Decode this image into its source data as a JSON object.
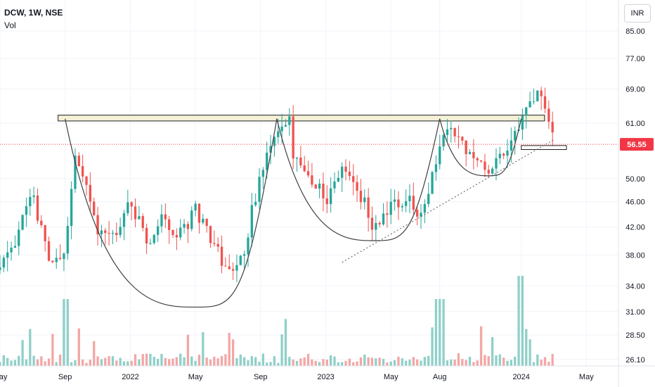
{
  "header": {
    "symbol_line": "DCW, 1W, NSE",
    "volume_label": "Vol",
    "currency": "INR"
  },
  "colors": {
    "up": "#26a69a",
    "down": "#ef5350",
    "volume_up": "#8fd0c8",
    "volume_down": "#f3a7a5",
    "pattern_line": "#3f3f3f",
    "resistance_fill": "#f4f1d7",
    "last_price": "#f23645"
  },
  "chart_data": {
    "type": "candlestick",
    "interval": "1W",
    "exchange": "NSE",
    "y_scale": "log",
    "ylim": [
      25.5,
      95
    ],
    "y_ticks": [
      "85.00",
      "77.00",
      "69.00",
      "61.00",
      "50.00",
      "46.00",
      "42.00",
      "38.00",
      "34.00",
      "31.00",
      "28.50",
      "26.10"
    ],
    "y_tick_values": [
      85,
      77,
      69,
      61,
      50,
      46,
      42,
      38,
      34,
      31,
      28.5,
      26.1
    ],
    "last_price": {
      "label": "56.55",
      "value": 56.55
    },
    "x_ticks": [
      "May",
      "Sep",
      "2022",
      "May",
      "Sep",
      "2023",
      "May",
      "Aug",
      "2024",
      "May"
    ],
    "x_tick_dates": [
      "2021-05",
      "2021-09",
      "2022-01",
      "2022-05",
      "2022-09",
      "2023-01",
      "2023-05",
      "2023-08",
      "2024-01",
      "2024-05"
    ],
    "x_range": [
      "2021-05",
      "2024-05"
    ],
    "pivots": [
      [
        "2021-05",
        36.0
      ],
      [
        "2021-06",
        40.5
      ],
      [
        "2021-07",
        47.0
      ],
      [
        "2021-08",
        36.5
      ],
      [
        "2021-09",
        38.0
      ],
      [
        "2021-09-20",
        54.0
      ],
      [
        "2021-10",
        50.0
      ],
      [
        "2021-11",
        42.0
      ],
      [
        "2021-12",
        41.0
      ],
      [
        "2022-01",
        46.5
      ],
      [
        "2022-02",
        39.0
      ],
      [
        "2022-03",
        44.0
      ],
      [
        "2022-04",
        40.5
      ],
      [
        "2022-05",
        45.0
      ],
      [
        "2022-06",
        40.5
      ],
      [
        "2022-07",
        35.5
      ],
      [
        "2022-08",
        38.5
      ],
      [
        "2022-09",
        51.0
      ],
      [
        "2022-10",
        58.0
      ],
      [
        "2022-10-25",
        61.5
      ],
      [
        "2022-11",
        53.0
      ],
      [
        "2022-12",
        50.5
      ],
      [
        "2023-01",
        46.0
      ],
      [
        "2023-02",
        52.5
      ],
      [
        "2023-03",
        48.0
      ],
      [
        "2023-04",
        41.5
      ],
      [
        "2023-05",
        45.5
      ],
      [
        "2023-06",
        46.0
      ],
      [
        "2023-07",
        44.0
      ],
      [
        "2023-08",
        55.5
      ],
      [
        "2023-08-25",
        60.0
      ],
      [
        "2023-09",
        57.0
      ],
      [
        "2023-10",
        55.0
      ],
      [
        "2023-11",
        51.5
      ],
      [
        "2023-12",
        55.5
      ],
      [
        "2024-01",
        62.0
      ],
      [
        "2024-02",
        68.0
      ],
      [
        "2024-02-20",
        61.0
      ],
      [
        "2024-03",
        56.55
      ]
    ],
    "volume_peaks": [
      {
        "date": "2021-09",
        "value": "high"
      },
      {
        "date": "2023-08",
        "value": "high"
      },
      {
        "date": "2024-01",
        "value": "highest"
      }
    ],
    "annotations": {
      "resistance_zone": {
        "from": "2021-09",
        "to": "2024-02",
        "low": 61.5,
        "high": 62.8
      },
      "support_box": {
        "from": "2024-01",
        "to": "2024-03",
        "low": 55.5,
        "high": 56.3
      },
      "trendline": {
        "start": [
          "2023-02",
          37.0
        ],
        "end": [
          "2024-03",
          57.5
        ],
        "style": "dotted"
      },
      "cups": [
        {
          "left": [
            "2021-09",
            62.0
          ],
          "bottom": [
            "2022-05",
            31.5
          ],
          "right": [
            "2022-10",
            62.0
          ]
        },
        {
          "left": [
            "2022-10",
            62.0
          ],
          "bottom": [
            "2023-04",
            40.0
          ],
          "right": [
            "2023-08",
            62.0
          ]
        },
        {
          "left": [
            "2023-08",
            62.0
          ],
          "bottom": [
            "2023-11",
            50.5
          ],
          "right": [
            "2024-01",
            62.0
          ]
        }
      ]
    }
  }
}
